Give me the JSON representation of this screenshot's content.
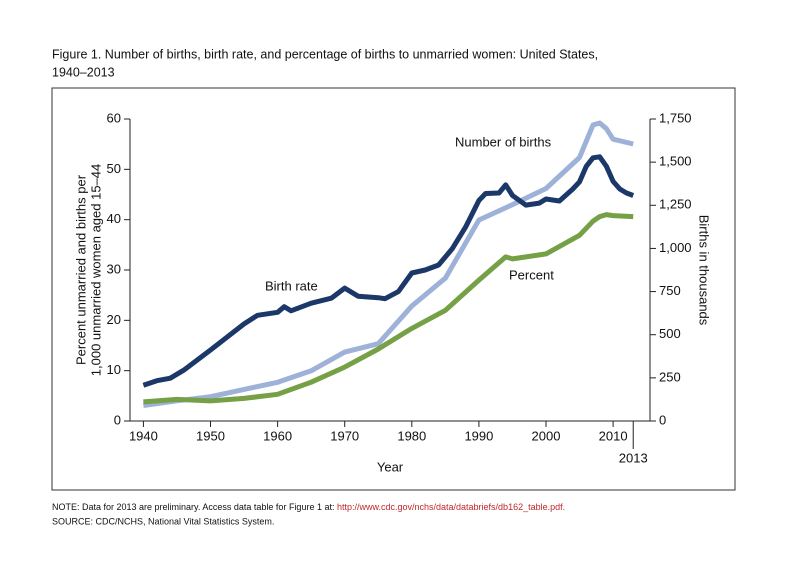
{
  "chart_data": {
    "type": "line",
    "title": "Figure 1. Number of births, birth rate, and percentage of births to unmarried women: United States,",
    "title_line2": "1940–2013",
    "xlabel": "Year",
    "ylabel": "Percent unmarried and births per",
    "ylabel_line2": "1,000 unmarried women aged 15–44",
    "y2label": "Births in thousands",
    "xlim": [
      1938,
      2015.5
    ],
    "xticks": [
      1940,
      1950,
      1960,
      1970,
      1980,
      1990,
      2000,
      2010,
      2013
    ],
    "ylim": [
      0,
      60
    ],
    "yticks": [
      0,
      10,
      20,
      30,
      40,
      50,
      60
    ],
    "y2lim": [
      0,
      1750
    ],
    "y2ticks": [
      0,
      250,
      500,
      750,
      {
        "value": 1000,
        "label": "1,000"
      },
      {
        "value": 1250,
        "label": "1,250"
      },
      {
        "value": 1500,
        "label": "1,500"
      },
      {
        "value": 1750,
        "label": "1,750"
      }
    ],
    "series": [
      {
        "name": "Number of births",
        "color": "#9eb1d8",
        "axis": "y2",
        "x": [
          1940,
          1945,
          1950,
          1955,
          1960,
          1965,
          1970,
          1975,
          1980,
          1985,
          1990,
          1995,
          2000,
          2005,
          2007,
          2008,
          2009,
          2010,
          2013
        ],
        "values": [
          90,
          117,
          141,
          183,
          224,
          291,
          399,
          448,
          666,
          828,
          1165,
          1254,
          1347,
          1527,
          1715,
          1727,
          1694,
          1633,
          1605
        ]
      },
      {
        "name": "Birth rate",
        "color": "#1b3868",
        "x": [
          1940,
          1942,
          1944,
          1946,
          1948,
          1950,
          1955,
          1957,
          1960,
          1961,
          1962,
          1965,
          1968,
          1970,
          1972,
          1975,
          1976,
          1978,
          1980,
          1982,
          1984,
          1986,
          1988,
          1990,
          1991,
          1993,
          1994,
          1995,
          1997,
          1999,
          2000,
          2002,
          2004,
          2005,
          2006,
          2007,
          2008,
          2009,
          2010,
          2011,
          2012,
          2013
        ],
        "values": [
          7.1,
          8.0,
          8.5,
          10.1,
          12.1,
          14.1,
          19.3,
          21.0,
          21.6,
          22.7,
          21.9,
          23.4,
          24.4,
          26.4,
          24.8,
          24.5,
          24.3,
          25.7,
          29.4,
          30.0,
          31.0,
          34.2,
          38.5,
          43.8,
          45.2,
          45.3,
          46.9,
          44.8,
          42.9,
          43.3,
          44.1,
          43.7,
          46.1,
          47.5,
          50.6,
          52.3,
          52.5,
          50.6,
          47.6,
          46.1,
          45.3,
          44.8
        ]
      },
      {
        "name": "Percent",
        "color": "#76a045",
        "x": [
          1940,
          1945,
          1950,
          1955,
          1960,
          1965,
          1970,
          1975,
          1980,
          1985,
          1990,
          1994,
          1995,
          2000,
          2005,
          2007,
          2008,
          2009,
          2010,
          2013
        ],
        "values": [
          3.8,
          4.3,
          4.0,
          4.5,
          5.3,
          7.7,
          10.7,
          14.3,
          18.4,
          22.0,
          28.0,
          32.6,
          32.2,
          33.2,
          36.9,
          39.7,
          40.6,
          41.0,
          40.8,
          40.6
        ]
      }
    ],
    "note": "NOTE: Data for 2013 are preliminary. Access data table for Figure 1 at: ",
    "note_link": "http://www.cdc.gov/nchs/data/databriefs/db162_table.pdf.",
    "source": "SOURCE: CDC/NCHS, National Vital Statistics System."
  }
}
